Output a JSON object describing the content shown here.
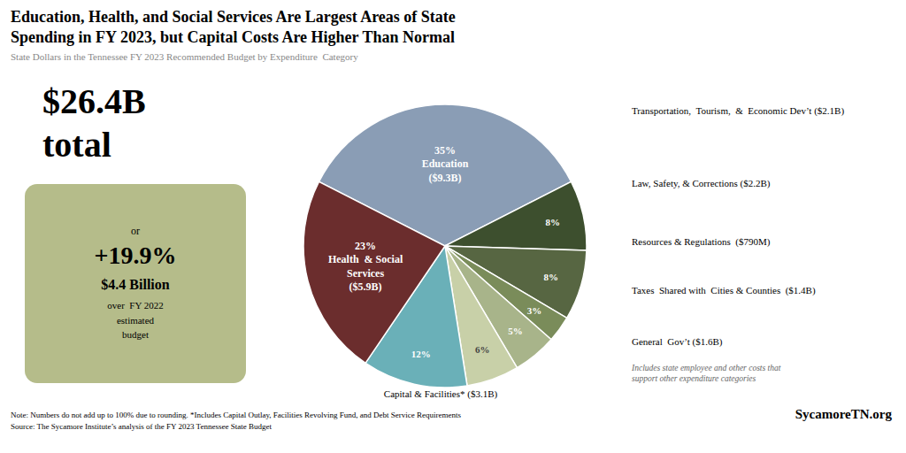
{
  "chart_data": {
    "type": "pie",
    "title": "Education, Health, and Social Services Are Largest Areas of State\nSpending in FY 2023, but Capital Costs Are Higher Than Normal",
    "subtitle": "State Dollars in the Tennessee FY 2023 Recommended Budget by Expenditure  Category",
    "values": [
      35,
      8,
      8,
      3,
      5,
      6,
      12,
      23
    ],
    "value_labels": [
      "35%\nEducation\n($9.3B)",
      "8%",
      "8%",
      "3%",
      "5%",
      "6%",
      "12%",
      "23%\nHealth  & Social\nServices\n($5.9B)"
    ],
    "colors": [
      "#8a9db5",
      "#3d4f2e",
      "#576642",
      "#7a8c5a",
      "#a8b48a",
      "#c8d0a8",
      "#6ab0b8",
      "#6b2d2d"
    ],
    "data_labels": true,
    "annotations": [
      "$26.4B",
      "total",
      "or",
      "+19.9%",
      "$4.4 Billion",
      "over  FY 2022\nestimated\nbudget",
      "Capital & Facilities* ($3.1B)",
      "Transportation,  Tourism,  &  Economic Dev’t ($2.1B)",
      "Law, Safety, & Corrections ($2.2B)",
      "Resources & Regulations  ($790M)",
      "Taxes  Shared with  Cities & Counties  ($1.4B)",
      "General  Gov’t ($1.6B)",
      "Includes state employee and other costs that\nsupport other expenditure categories",
      "Note: Numbers do not add up to 100% due to rounding. *Includes Capital Outlay, Facilities Revolving Fund, and Debt Service Requirements\nSource: The Sycamore Institute’s analysis of the FY 2023 Tennessee State Budget",
      "SycamoreTN.org"
    ]
  }
}
